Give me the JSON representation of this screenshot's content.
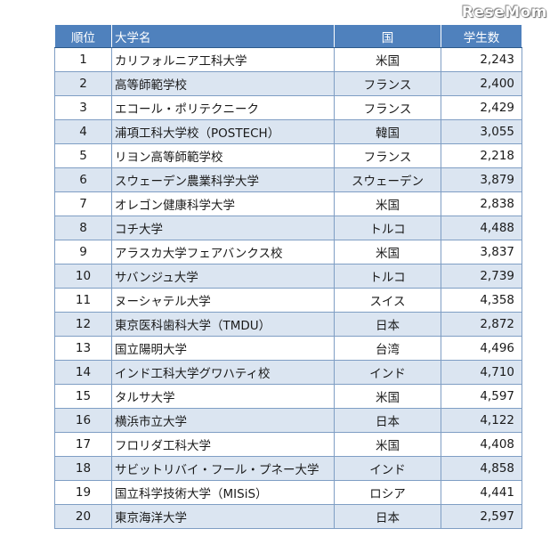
{
  "logo": "ReseMom",
  "headers": {
    "rank": "順位",
    "university": "大学名",
    "country": "国",
    "students": "学生数"
  },
  "rows": [
    {
      "rank": "1",
      "university": "カリフォルニア工科大学",
      "country": "米国",
      "students": "2,243"
    },
    {
      "rank": "2",
      "university": "高等師範学校",
      "country": "フランス",
      "students": "2,400"
    },
    {
      "rank": "3",
      "university": "エコール・ポリテクニーク",
      "country": "フランス",
      "students": "2,429"
    },
    {
      "rank": "4",
      "university": "浦項工科大学校（POSTECH）",
      "country": "韓国",
      "students": "3,055"
    },
    {
      "rank": "5",
      "university": "リヨン高等師範学校",
      "country": "フランス",
      "students": "2,218"
    },
    {
      "rank": "6",
      "university": "スウェーデン農業科学大学",
      "country": "スウェーデン",
      "students": "3,879"
    },
    {
      "rank": "7",
      "university": "オレゴン健康科学大学",
      "country": "米国",
      "students": "2,838"
    },
    {
      "rank": "8",
      "university": "コチ大学",
      "country": "トルコ",
      "students": "4,488"
    },
    {
      "rank": "9",
      "university": "アラスカ大学フェアバンクス校",
      "country": "米国",
      "students": "3,837"
    },
    {
      "rank": "10",
      "university": "サバンジュ大学",
      "country": "トルコ",
      "students": "2,739"
    },
    {
      "rank": "11",
      "university": "ヌーシャテル大学",
      "country": "スイス",
      "students": "4,358"
    },
    {
      "rank": "12",
      "university": "東京医科歯科大学（TMDU）",
      "country": "日本",
      "students": "2,872"
    },
    {
      "rank": "13",
      "university": "国立陽明大学",
      "country": "台湾",
      "students": "4,496"
    },
    {
      "rank": "14",
      "university": "インド工科大学グワハティ校",
      "country": "インド",
      "students": "4,710"
    },
    {
      "rank": "15",
      "university": "タルサ大学",
      "country": "米国",
      "students": "4,597"
    },
    {
      "rank": "16",
      "university": "横浜市立大学",
      "country": "日本",
      "students": "4,122"
    },
    {
      "rank": "17",
      "university": "フロリダ工科大学",
      "country": "米国",
      "students": "4,408"
    },
    {
      "rank": "18",
      "university": "サビットリバイ・フール・プネー大学",
      "country": "インド",
      "students": "4,858"
    },
    {
      "rank": "19",
      "university": "国立科学技術大学（MISiS）",
      "country": "ロシア",
      "students": "4,441"
    },
    {
      "rank": "20",
      "university": "東京海洋大学",
      "country": "日本",
      "students": "2,597"
    }
  ]
}
